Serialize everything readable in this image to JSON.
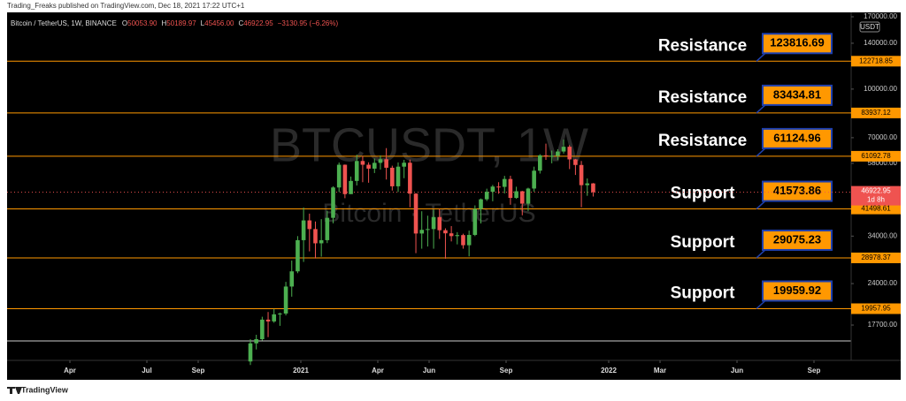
{
  "header": {
    "publisher": "Trading_Freaks published on TradingView.com, Dec 18, 2021 17:22 UTC+1"
  },
  "chart_data": {
    "type": "candlestick",
    "title": "Bitcoin / TetherUS, 1W, BINANCE",
    "ohlc": [
      {
        "label": "O",
        "value": "50053.90"
      },
      {
        "label": "H",
        "value": "50189.97"
      },
      {
        "label": "L",
        "value": "45456.00"
      },
      {
        "label": "C",
        "value": "46922.95"
      }
    ],
    "change": "−3130.95 (−6.26%)",
    "watermark": "BTCUSDT, 1W",
    "watermark_subtitle": "Bitcoin · TetherUS",
    "up_color": "#4caf50",
    "down_color": "#ef5350",
    "level_color": "#ff9800",
    "log_scale": true,
    "y_unit": "USDT",
    "ylim": [
      13660,
      175600
    ],
    "yticks": [
      {
        "value": 170000,
        "label": "170000.00"
      },
      {
        "value": 140000,
        "label": "140000.00"
      },
      {
        "value": 100000,
        "label": "100000.00"
      },
      {
        "value": 70000,
        "label": "70000.00"
      },
      {
        "value": 58000,
        "label": "58000.00"
      },
      {
        "value": 34000,
        "label": "34000.00"
      },
      {
        "value": 24000,
        "label": "24000.00"
      },
      {
        "value": 17700,
        "label": "17700.00"
      }
    ],
    "xlim": [
      "2020-01",
      "2022-10"
    ],
    "xticks": [
      {
        "value": "2020-04",
        "label": "Apr"
      },
      {
        "value": "2020-07",
        "label": "Jul"
      },
      {
        "value": "2020-09",
        "label": "Sep"
      },
      {
        "value": "2021-01",
        "label": "2021"
      },
      {
        "value": "2021-04",
        "label": "Apr"
      },
      {
        "value": "2021-06",
        "label": "Jun"
      },
      {
        "value": "2021-09",
        "label": "Sep"
      },
      {
        "value": "2022-01",
        "label": "2022"
      },
      {
        "value": "2022-03",
        "label": "Mar"
      },
      {
        "value": "2022-06",
        "label": "Jun"
      },
      {
        "value": "2022-09",
        "label": "Sep"
      }
    ],
    "candles": [
      [
        13550,
        15960,
        13200,
        15480
      ],
      [
        15480,
        16480,
        14800,
        15960
      ],
      [
        15960,
        18815,
        15800,
        18420
      ],
      [
        18420,
        19480,
        16200,
        18180
      ],
      [
        18180,
        19920,
        18000,
        19150
      ],
      [
        19150,
        19400,
        17600,
        19260
      ],
      [
        19260,
        24300,
        19000,
        23480
      ],
      [
        23480,
        28420,
        21800,
        26250
      ],
      [
        26250,
        34000,
        25900,
        33000
      ],
      [
        33000,
        41950,
        28130,
        38150
      ],
      [
        38150,
        40100,
        30400,
        35800
      ],
      [
        35800,
        37850,
        28850,
        32250
      ],
      [
        32250,
        38500,
        29240,
        33000
      ],
      [
        33000,
        40950,
        32300,
        38870
      ],
      [
        38870,
        49000,
        37350,
        48580
      ],
      [
        48580,
        58350,
        47000,
        57400
      ],
      [
        57400,
        57500,
        44900,
        46270
      ],
      [
        46270,
        52640,
        46300,
        50970
      ],
      [
        50970,
        61800,
        49300,
        59000
      ],
      [
        59000,
        61180,
        50500,
        57400
      ],
      [
        57400,
        58420,
        50300,
        55780
      ],
      [
        55780,
        60100,
        54000,
        58200
      ],
      [
        58200,
        61500,
        55400,
        59770
      ],
      [
        59770,
        64850,
        51500,
        56150
      ],
      [
        56150,
        57000,
        47500,
        49000
      ],
      [
        49000,
        58400,
        47000,
        56600
      ],
      [
        56600,
        59500,
        52000,
        58250
      ],
      [
        58250,
        59600,
        42000,
        46430
      ],
      [
        46430,
        46600,
        30000,
        34650
      ],
      [
        34650,
        40800,
        31000,
        35600
      ],
      [
        35600,
        39500,
        31500,
        35800
      ],
      [
        35800,
        41300,
        31000,
        39100
      ],
      [
        39100,
        41500,
        33300,
        35500
      ],
      [
        35500,
        36000,
        28800,
        34700
      ],
      [
        34700,
        36600,
        32700,
        34000
      ],
      [
        34000,
        35000,
        32000,
        34250
      ],
      [
        34250,
        34600,
        31000,
        31800
      ],
      [
        31800,
        35400,
        29300,
        34300
      ],
      [
        34300,
        42600,
        34000,
        41500
      ],
      [
        41500,
        44800,
        37300,
        44550
      ],
      [
        44550,
        48150,
        44000,
        47060
      ],
      [
        47060,
        49500,
        43900,
        48900
      ],
      [
        48900,
        50500,
        46400,
        48800
      ],
      [
        48800,
        52900,
        46500,
        51700
      ],
      [
        51700,
        52950,
        42800,
        45000
      ],
      [
        45000,
        48850,
        44700,
        47250
      ],
      [
        47250,
        47400,
        39600,
        43150
      ],
      [
        43150,
        48500,
        40800,
        48200
      ],
      [
        48200,
        56600,
        47100,
        54950
      ],
      [
        54950,
        62000,
        53800,
        61500
      ],
      [
        61500,
        67000,
        59500,
        61300
      ],
      [
        61300,
        63700,
        58000,
        61300
      ],
      [
        61300,
        64300,
        59400,
        63250
      ],
      [
        63250,
        69000,
        62300,
        65500
      ],
      [
        65500,
        66300,
        55600,
        59700
      ],
      [
        59700,
        59900,
        53250,
        57300
      ],
      [
        57300,
        59000,
        42000,
        49400
      ],
      [
        49400,
        51900,
        45700,
        50060
      ],
      [
        50053.9,
        50189.97,
        45456,
        46922.95
      ]
    ],
    "levels": [
      {
        "name": "Resistance",
        "value": 123816.69,
        "line": 122718.85
      },
      {
        "name": "Resistance",
        "value": 83434.81,
        "line": 83937.12
      },
      {
        "name": "Resistance",
        "value": 61124.96,
        "line": 61092.78
      },
      {
        "name": "Support",
        "value": 41573.86,
        "line": 41498.61
      },
      {
        "name": "Support",
        "value": 29075.23,
        "line": 28978.37
      },
      {
        "name": "Support",
        "value": 19959.92,
        "line": 19957.95
      }
    ],
    "current_price": {
      "value": 46922.95,
      "countdown": "1d 8h"
    }
  },
  "footer": {
    "brand": "TradingView"
  }
}
